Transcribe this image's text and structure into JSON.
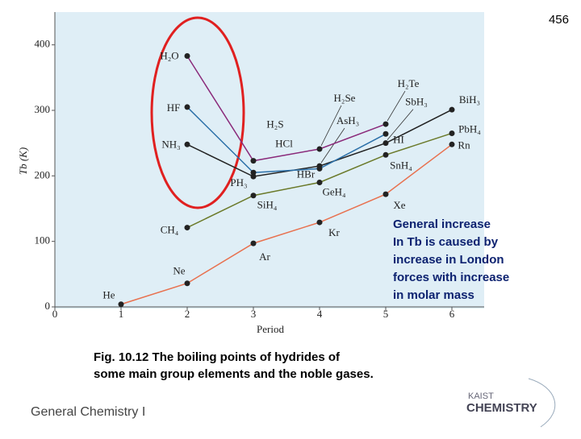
{
  "page_number": "456",
  "chart_data": {
    "type": "line",
    "xlabel": "Period",
    "ylabel": "Tb (K)",
    "xlim": [
      0,
      6.5
    ],
    "xticks": [
      0,
      1,
      2,
      3,
      4,
      5,
      6
    ],
    "ylim": [
      0,
      450
    ],
    "yticks": [
      0,
      100,
      200,
      300,
      400
    ],
    "series": [
      {
        "color": "#e8714f",
        "x": [
          1,
          2,
          3,
          4,
          5,
          6
        ],
        "values": [
          4,
          36,
          97,
          129,
          172,
          248
        ],
        "labels": [
          "He",
          "Ne",
          "Ar",
          "Kr",
          "Xe",
          "Rn"
        ]
      },
      {
        "color": "#6b7a2a",
        "x": [
          2,
          3,
          4,
          5,
          6
        ],
        "values": [
          121,
          170,
          190,
          232,
          265
        ],
        "labels": [
          "CH₄",
          "SiH₄",
          "GeH₄",
          "SnH₄",
          "PbH₄"
        ]
      },
      {
        "color": "#222222",
        "x": [
          2,
          3,
          4,
          5,
          6
        ],
        "values": [
          248,
          199,
          215,
          250,
          301
        ],
        "labels": [
          "NH₃",
          "PH₃",
          "AsH₃",
          "SbH₃",
          "BiH₃"
        ]
      },
      {
        "color": "#8a2a7a",
        "x": [
          2,
          3,
          4,
          5
        ],
        "values": [
          383,
          223,
          241,
          279
        ],
        "labels": [
          "H₂O",
          "H₂S",
          "H₂Se",
          "H₂Te"
        ]
      },
      {
        "color": "#2a6fa8",
        "x": [
          2,
          3,
          4,
          5
        ],
        "values": [
          305,
          205,
          211,
          264
        ],
        "labels": [
          "HF",
          "HCl",
          "HBr",
          "HI"
        ]
      }
    ]
  },
  "annotation": [
    "General increase",
    "In Tb is caused by",
    "increase in London",
    "forces with increase",
    "in molar mass"
  ],
  "caption": [
    "Fig. 10.12 The boiling points of hydrides of",
    "some main group elements and the noble gases."
  ],
  "footer": "General Chemistry I",
  "logo": {
    "top": "KAIST",
    "bottom": "CHEMISTRY"
  }
}
